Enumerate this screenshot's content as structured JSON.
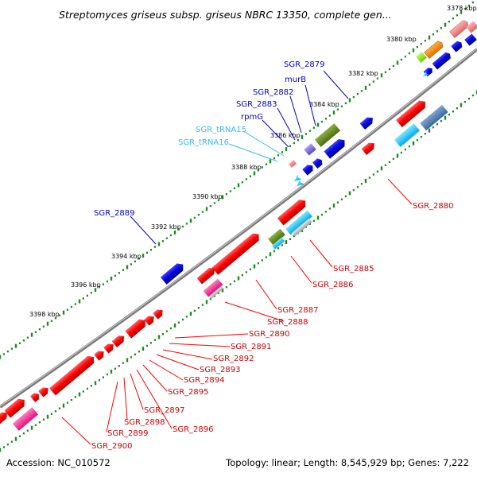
{
  "title": "Streptomyces griseus subsp. griseus NBRC 13350, complete gen...",
  "accession": "Accession: NC_010572",
  "summary": "Topology: linear; Length: 8,545,929 bp; Genes: 7,222",
  "colors": {
    "backbone": "#8c8c8c",
    "tick_dots": "#1e8c1e",
    "gene_red": "#ff0000",
    "gene_blue": "#0000dd",
    "rna_cyan": "#00c8ff",
    "label_red": "#cc0000",
    "label_blue": "#0000cc",
    "label_cyan": "#33bbee"
  },
  "position_labels": [
    "3378 kbp",
    "3380 kbp",
    "3382 kbp",
    "3384 kbp",
    "3386 kbp",
    "3388 kbp",
    "3390 kbp",
    "3392 kbp",
    "3394 kbp",
    "3396 kbp",
    "3398 kbp"
  ],
  "upper_labels": [
    "SGR_2879",
    "murB",
    "SGR_2882",
    "SGR_2883",
    "rpmG",
    "SGR_tRNA15",
    "SGR_tRNA16",
    "SGR_2889"
  ],
  "lower_labels": [
    "SGR_2880",
    "SGR_2885",
    "SGR_2886",
    "SGR_2887",
    "SGR_2888",
    "SGR_2890",
    "SGR_2891",
    "SGR_2892",
    "SGR_2893",
    "SGR_2894",
    "SGR_2895",
    "SGR_2897",
    "SGR_2896",
    "SGR_2898",
    "SGR_2899",
    "SGR_2900"
  ]
}
